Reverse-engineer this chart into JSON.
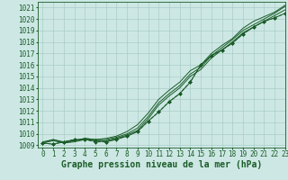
{
  "title": "Graphe pression niveau de la mer (hPa)",
  "background_color": "#cde8e4",
  "grid_color": "#aaccc8",
  "line_color": "#1a5c28",
  "xlim": [
    -0.5,
    23
  ],
  "ylim": [
    1008.8,
    1021.5
  ],
  "yticks": [
    1009,
    1010,
    1011,
    1012,
    1013,
    1014,
    1015,
    1016,
    1017,
    1018,
    1019,
    1020,
    1021
  ],
  "xticks": [
    0,
    1,
    2,
    3,
    4,
    5,
    6,
    7,
    8,
    9,
    10,
    11,
    12,
    13,
    14,
    15,
    16,
    17,
    18,
    19,
    20,
    21,
    22,
    23
  ],
  "series_plain": [
    [
      1009.2,
      1009.5,
      1009.2,
      1009.4,
      1009.6,
      1009.5,
      1009.5,
      1009.7,
      1010.0,
      1010.5,
      1011.5,
      1012.7,
      1013.5,
      1014.2,
      1015.2,
      1015.8,
      1016.8,
      1017.5,
      1018.2,
      1019.0,
      1019.5,
      1020.0,
      1020.5,
      1021.1
    ],
    [
      1009.3,
      1009.5,
      1009.3,
      1009.4,
      1009.6,
      1009.5,
      1009.6,
      1009.8,
      1010.2,
      1010.8,
      1011.8,
      1013.0,
      1013.8,
      1014.5,
      1015.5,
      1016.0,
      1017.0,
      1017.7,
      1018.3,
      1019.2,
      1019.8,
      1020.2,
      1020.6,
      1021.2
    ],
    [
      1009.2,
      1009.4,
      1009.2,
      1009.3,
      1009.5,
      1009.4,
      1009.4,
      1009.6,
      1009.9,
      1010.3,
      1011.3,
      1012.5,
      1013.3,
      1014.0,
      1015.0,
      1015.6,
      1016.6,
      1017.3,
      1018.0,
      1018.8,
      1019.3,
      1019.8,
      1020.3,
      1020.8
    ]
  ],
  "series_marker": [
    1009.2,
    1009.1,
    1009.3,
    1009.5,
    1009.5,
    1009.4,
    1009.3,
    1009.5,
    1009.8,
    1010.2,
    1011.1,
    1011.9,
    1012.8,
    1013.5,
    1014.5,
    1016.0,
    1016.8,
    1017.3,
    1017.9,
    1018.7,
    1019.3,
    1019.8,
    1020.1,
    1020.5
  ],
  "fontsize_title": 7,
  "fontsize_ticks": 5.5
}
